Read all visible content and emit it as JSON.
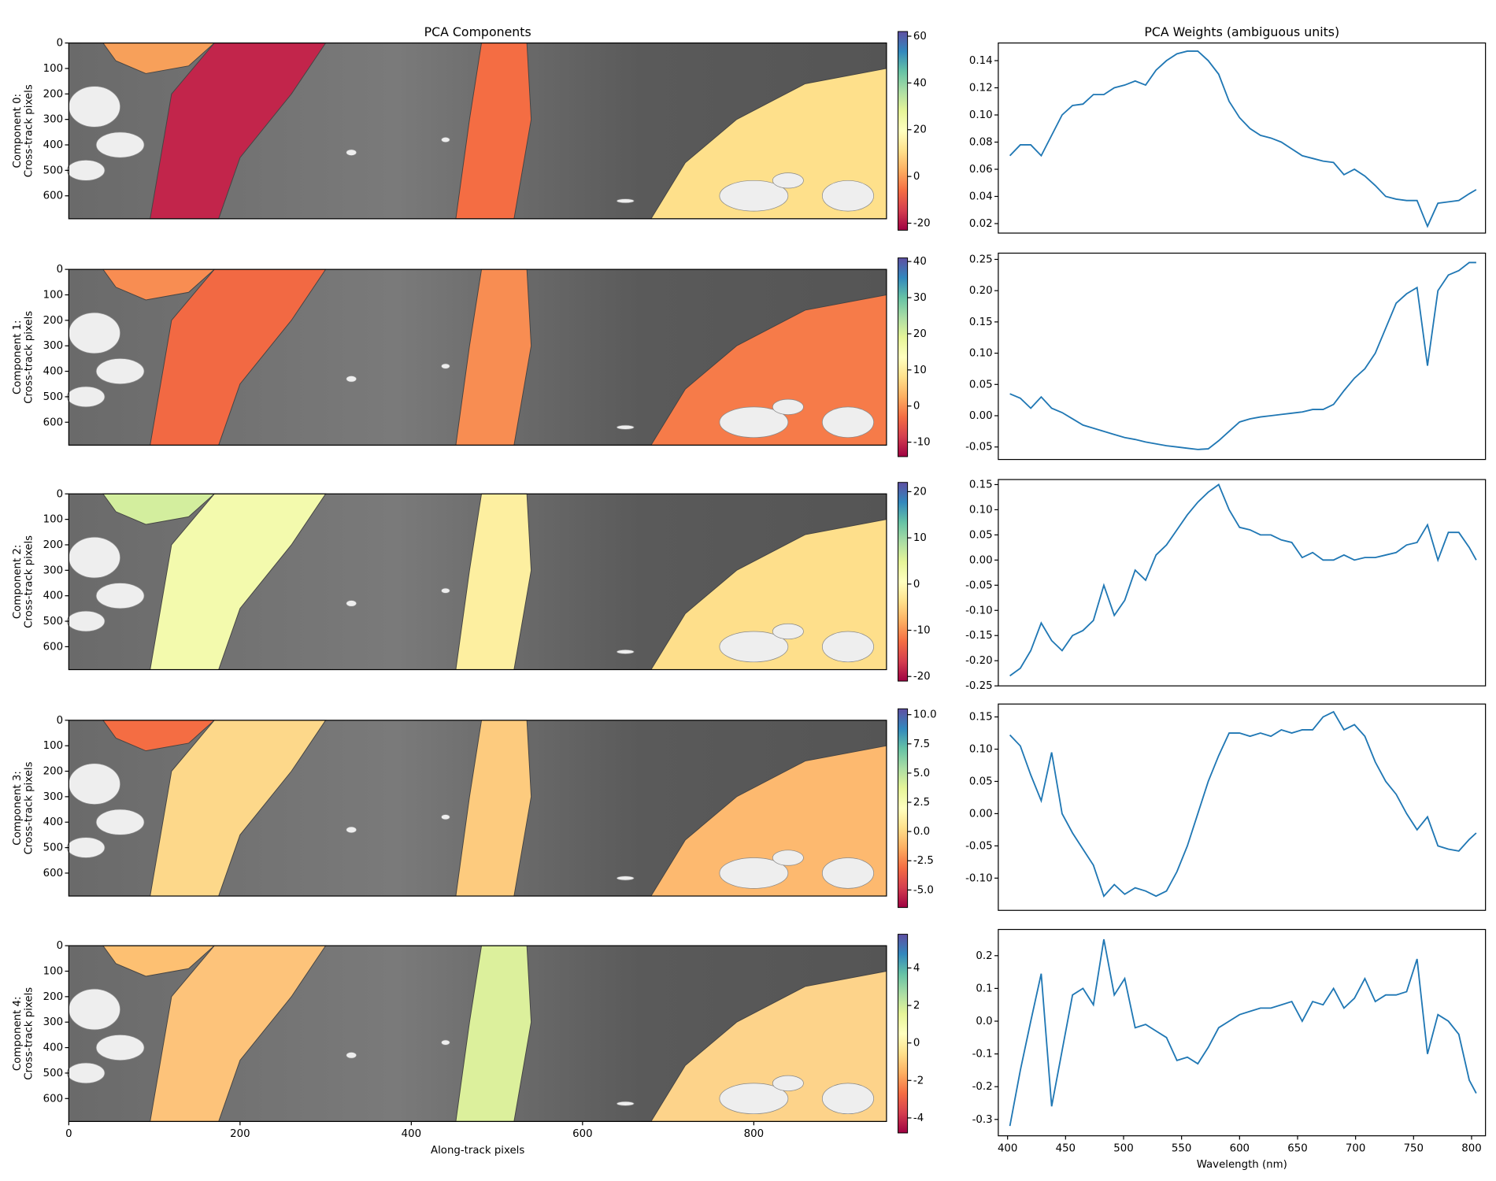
{
  "chart_data": [
    {
      "type": "image",
      "title": "PCA Components",
      "ylabel": [
        "Component 0:",
        "Cross-track pixels"
      ],
      "xlim": [
        0,
        955
      ],
      "ylim": [
        690,
        0
      ],
      "yticks": [
        0,
        100,
        200,
        300,
        400,
        500,
        600
      ],
      "clim": [
        -23,
        62
      ],
      "cticks": [
        -20,
        0,
        20,
        40,
        60
      ],
      "colors": [
        "#f7a05a",
        "#c2254b",
        "#f46d43",
        "#fee08b"
      ]
    },
    {
      "type": "image",
      "ylabel": [
        "Component 1:",
        "Cross-track pixels"
      ],
      "xlim": [
        0,
        955
      ],
      "ylim": [
        690,
        0
      ],
      "yticks": [
        0,
        100,
        200,
        300,
        400,
        500,
        600
      ],
      "clim": [
        -14,
        41
      ],
      "cticks": [
        -10,
        0,
        10,
        20,
        30,
        40
      ],
      "colors": [
        "#f88d52",
        "#f26943",
        "#f88d52",
        "#f67b49"
      ]
    },
    {
      "type": "image",
      "ylabel": [
        "Component 2:",
        "Cross-track pixels"
      ],
      "xlim": [
        0,
        955
      ],
      "ylim": [
        690,
        0
      ],
      "yticks": [
        0,
        100,
        200,
        300,
        400,
        500,
        600
      ],
      "clim": [
        -21,
        22
      ],
      "cticks": [
        -20,
        -10,
        0,
        10,
        20
      ],
      "colors": [
        "#d3ee9e",
        "#f3faad",
        "#fdefa0",
        "#fedf8b"
      ]
    },
    {
      "type": "image",
      "ylabel": [
        "Component 3:",
        "Cross-track pixels"
      ],
      "xlim": [
        0,
        955
      ],
      "ylim": [
        690,
        0
      ],
      "yticks": [
        0,
        100,
        200,
        300,
        400,
        500,
        600
      ],
      "clim": [
        -6.5,
        10.5
      ],
      "cticks": [
        {
          "value": -5,
          "label": "-5.0"
        },
        {
          "value": -2.5,
          "label": "-2.5"
        },
        {
          "value": 0,
          "label": "0.0"
        },
        {
          "value": 2.5,
          "label": "2.5"
        },
        {
          "value": 5,
          "label": "5.0"
        },
        {
          "value": 7.5,
          "label": "7.5"
        },
        {
          "value": 10,
          "label": "10.0"
        }
      ],
      "colors": [
        "#f46d43",
        "#fdd88a",
        "#fdcb7e",
        "#fdb96f"
      ]
    },
    {
      "type": "image",
      "ylabel": [
        "Component 4:",
        "Cross-track pixels"
      ],
      "xlabel": "Along-track pixels",
      "xlim": [
        0,
        955
      ],
      "ylim": [
        690,
        0
      ],
      "xticks": [
        0,
        200,
        400,
        600,
        800
      ],
      "yticks": [
        0,
        100,
        200,
        300,
        400,
        500,
        600
      ],
      "clim": [
        -4.8,
        5.8
      ],
      "cticks": [
        -4,
        -2,
        0,
        2,
        4
      ],
      "colors": [
        "#fdc072",
        "#fdc37a",
        "#dcf09c",
        "#fdd38a"
      ]
    },
    {
      "type": "line",
      "title": "PCA Weights (ambiguous units)",
      "color": "#1f77b4",
      "xlim": [
        392,
        812
      ],
      "ylim": [
        0.013,
        0.153
      ],
      "yticks": [
        {
          "value": 0.02,
          "label": "0.02"
        },
        {
          "value": 0.04,
          "label": "0.04"
        },
        {
          "value": 0.06,
          "label": "0.06"
        },
        {
          "value": 0.08,
          "label": "0.08"
        },
        {
          "value": 0.1,
          "label": "0.10"
        },
        {
          "value": 0.12,
          "label": "0.12"
        },
        {
          "value": 0.14,
          "label": "0.14"
        }
      ],
      "x": [
        402,
        411,
        420,
        429,
        438,
        447,
        456,
        465,
        474,
        483,
        492,
        501,
        510,
        519,
        528,
        537,
        546,
        555,
        564,
        573,
        582,
        591,
        600,
        609,
        618,
        627,
        636,
        645,
        654,
        663,
        672,
        681,
        690,
        699,
        708,
        717,
        726,
        735,
        744,
        753,
        762,
        771,
        780,
        789,
        798,
        804
      ],
      "values": [
        0.07,
        0.078,
        0.078,
        0.07,
        0.085,
        0.1,
        0.107,
        0.108,
        0.115,
        0.115,
        0.12,
        0.122,
        0.125,
        0.122,
        0.133,
        0.14,
        0.145,
        0.147,
        0.147,
        0.14,
        0.13,
        0.11,
        0.098,
        0.09,
        0.085,
        0.083,
        0.08,
        0.075,
        0.07,
        0.068,
        0.066,
        0.065,
        0.056,
        0.06,
        0.055,
        0.048,
        0.04,
        0.038,
        0.037,
        0.037,
        0.018,
        0.035,
        0.036,
        0.037,
        0.042,
        0.045
      ]
    },
    {
      "type": "line",
      "color": "#1f77b4",
      "xlim": [
        392,
        812
      ],
      "ylim": [
        -0.07,
        0.26
      ],
      "yticks": [
        {
          "value": -0.05,
          "label": "-0.05"
        },
        {
          "value": 0,
          "label": "0.00"
        },
        {
          "value": 0.05,
          "label": "0.05"
        },
        {
          "value": 0.1,
          "label": "0.10"
        },
        {
          "value": 0.15,
          "label": "0.15"
        },
        {
          "value": 0.2,
          "label": "0.20"
        },
        {
          "value": 0.25,
          "label": "0.25"
        }
      ],
      "x": [
        402,
        411,
        420,
        429,
        438,
        447,
        456,
        465,
        474,
        483,
        492,
        501,
        510,
        519,
        528,
        537,
        546,
        555,
        564,
        573,
        582,
        591,
        600,
        609,
        618,
        627,
        636,
        645,
        654,
        663,
        672,
        681,
        690,
        699,
        708,
        717,
        726,
        735,
        744,
        753,
        762,
        771,
        780,
        789,
        798,
        804
      ],
      "values": [
        0.035,
        0.028,
        0.012,
        0.03,
        0.012,
        0.005,
        -0.005,
        -0.015,
        -0.02,
        -0.025,
        -0.03,
        -0.035,
        -0.038,
        -0.042,
        -0.045,
        -0.048,
        -0.05,
        -0.052,
        -0.054,
        -0.053,
        -0.04,
        -0.025,
        -0.01,
        -0.005,
        -0.002,
        0.0,
        0.002,
        0.004,
        0.006,
        0.01,
        0.01,
        0.018,
        0.04,
        0.06,
        0.075,
        0.1,
        0.14,
        0.18,
        0.195,
        0.205,
        0.08,
        0.2,
        0.225,
        0.232,
        0.245,
        0.245
      ]
    },
    {
      "type": "line",
      "color": "#1f77b4",
      "xlim": [
        392,
        812
      ],
      "ylim": [
        -0.25,
        0.16
      ],
      "yticks": [
        {
          "value": -0.25,
          "label": "-0.25"
        },
        {
          "value": -0.2,
          "label": "-0.20"
        },
        {
          "value": -0.15,
          "label": "-0.15"
        },
        {
          "value": -0.1,
          "label": "-0.10"
        },
        {
          "value": -0.05,
          "label": "-0.05"
        },
        {
          "value": 0,
          "label": "0.00"
        },
        {
          "value": 0.05,
          "label": "0.05"
        },
        {
          "value": 0.1,
          "label": "0.10"
        },
        {
          "value": 0.15,
          "label": "0.15"
        }
      ],
      "x": [
        402,
        411,
        420,
        429,
        438,
        447,
        456,
        465,
        474,
        483,
        492,
        501,
        510,
        519,
        528,
        537,
        546,
        555,
        564,
        573,
        582,
        591,
        600,
        609,
        618,
        627,
        636,
        645,
        654,
        663,
        672,
        681,
        690,
        699,
        708,
        717,
        726,
        735,
        744,
        753,
        762,
        771,
        780,
        789,
        798,
        804
      ],
      "values": [
        -0.23,
        -0.215,
        -0.18,
        -0.125,
        -0.16,
        -0.18,
        -0.15,
        -0.14,
        -0.12,
        -0.05,
        -0.11,
        -0.08,
        -0.02,
        -0.04,
        0.01,
        0.03,
        0.06,
        0.09,
        0.115,
        0.135,
        0.15,
        0.1,
        0.065,
        0.06,
        0.05,
        0.05,
        0.04,
        0.035,
        0.005,
        0.015,
        0.0,
        0.0,
        0.01,
        0.0,
        0.005,
        0.005,
        0.01,
        0.015,
        0.03,
        0.035,
        0.07,
        0.0,
        0.055,
        0.055,
        0.025,
        0.0
      ]
    },
    {
      "type": "line",
      "color": "#1f77b4",
      "xlim": [
        392,
        812
      ],
      "ylim": [
        -0.15,
        0.17
      ],
      "yticks": [
        {
          "value": -0.1,
          "label": "-0.10"
        },
        {
          "value": -0.05,
          "label": "-0.05"
        },
        {
          "value": 0,
          "label": "0.00"
        },
        {
          "value": 0.05,
          "label": "0.05"
        },
        {
          "value": 0.1,
          "label": "0.10"
        },
        {
          "value": 0.15,
          "label": "0.15"
        }
      ],
      "x": [
        402,
        411,
        420,
        429,
        438,
        447,
        456,
        465,
        474,
        483,
        492,
        501,
        510,
        519,
        528,
        537,
        546,
        555,
        564,
        573,
        582,
        591,
        600,
        609,
        618,
        627,
        636,
        645,
        654,
        663,
        672,
        681,
        690,
        699,
        708,
        717,
        726,
        735,
        744,
        753,
        762,
        771,
        780,
        789,
        798,
        804
      ],
      "values": [
        0.122,
        0.105,
        0.06,
        0.02,
        0.095,
        0.0,
        -0.03,
        -0.055,
        -0.08,
        -0.128,
        -0.11,
        -0.125,
        -0.115,
        -0.12,
        -0.128,
        -0.12,
        -0.09,
        -0.05,
        0.0,
        0.05,
        0.09,
        0.125,
        0.125,
        0.12,
        0.125,
        0.12,
        0.13,
        0.125,
        0.13,
        0.13,
        0.15,
        0.158,
        0.13,
        0.138,
        0.12,
        0.08,
        0.05,
        0.03,
        0.0,
        -0.025,
        -0.005,
        -0.05,
        -0.055,
        -0.058,
        -0.04,
        -0.03
      ]
    },
    {
      "type": "line",
      "xlabel": "Wavelength (nm)",
      "color": "#1f77b4",
      "xlim": [
        392,
        812
      ],
      "ylim": [
        -0.35,
        0.28
      ],
      "xticks": [
        400,
        450,
        500,
        550,
        600,
        650,
        700,
        750,
        800
      ],
      "yticks": [
        {
          "value": -0.3,
          "label": "-0.3"
        },
        {
          "value": -0.2,
          "label": "-0.2"
        },
        {
          "value": -0.1,
          "label": "-0.1"
        },
        {
          "value": 0,
          "label": "0.0"
        },
        {
          "value": 0.1,
          "label": "0.1"
        },
        {
          "value": 0.2,
          "label": "0.2"
        }
      ],
      "x": [
        402,
        411,
        420,
        429,
        438,
        447,
        456,
        465,
        474,
        483,
        492,
        501,
        510,
        519,
        528,
        537,
        546,
        555,
        564,
        573,
        582,
        591,
        600,
        609,
        618,
        627,
        636,
        645,
        654,
        663,
        672,
        681,
        690,
        699,
        708,
        717,
        726,
        735,
        744,
        753,
        762,
        771,
        780,
        789,
        798,
        804
      ],
      "values": [
        -0.32,
        -0.15,
        0.0,
        0.145,
        -0.26,
        -0.09,
        0.08,
        0.1,
        0.05,
        0.25,
        0.08,
        0.13,
        -0.02,
        -0.01,
        -0.03,
        -0.05,
        -0.12,
        -0.11,
        -0.13,
        -0.08,
        -0.02,
        0.0,
        0.02,
        0.03,
        0.04,
        0.04,
        0.05,
        0.06,
        0.0,
        0.06,
        0.05,
        0.1,
        0.04,
        0.07,
        0.13,
        0.06,
        0.08,
        0.08,
        0.09,
        0.19,
        -0.1,
        0.02,
        0.0,
        -0.04,
        -0.18,
        -0.22
      ]
    }
  ]
}
